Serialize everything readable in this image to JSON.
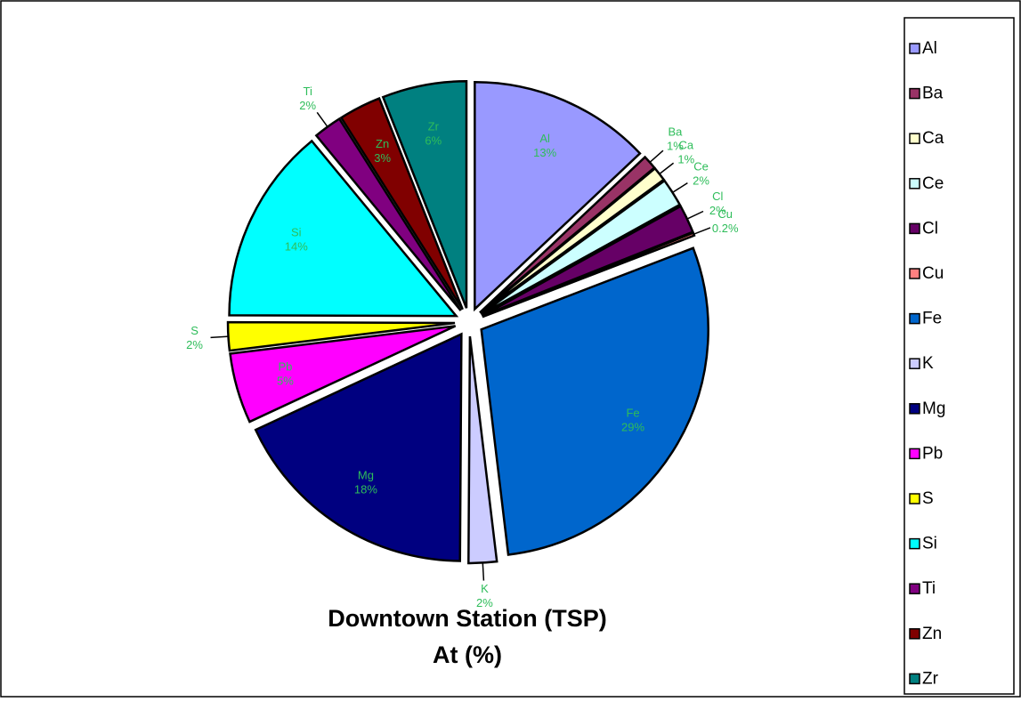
{
  "chart_data": {
    "type": "pie",
    "title": "Downtown Station (TSP)",
    "subtitle": "At (%)",
    "categories": [
      "Al",
      "Ba",
      "Ca",
      "Ce",
      "Cl",
      "Cu",
      "Fe",
      "K",
      "Mg",
      "Pb",
      "S",
      "Si",
      "Ti",
      "Zn",
      "Zr"
    ],
    "values": [
      13,
      1,
      1,
      2,
      2,
      0.2,
      29,
      2,
      18,
      5,
      2,
      14,
      2,
      3,
      6
    ],
    "value_labels": [
      "13%",
      "1%",
      "1%",
      "2%",
      "2%",
      "0.2%",
      "29%",
      "2%",
      "18%",
      "5%",
      "2%",
      "14%",
      "2%",
      "3%",
      "6%"
    ],
    "colors": [
      "#9999ff",
      "#993366",
      "#ffffcc",
      "#ccffff",
      "#660066",
      "#ff8080",
      "#0066cc",
      "#ccccff",
      "#000080",
      "#ff00ff",
      "#ffff00",
      "#00ffff",
      "#800080",
      "#800000",
      "#008080"
    ],
    "legend": "right"
  }
}
